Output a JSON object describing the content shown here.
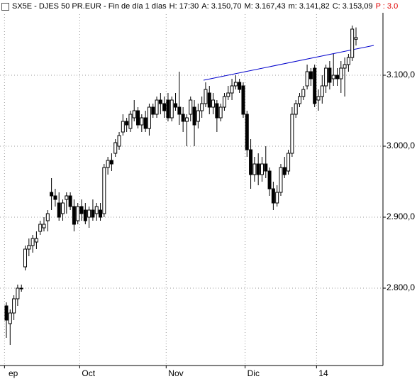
{
  "header": [
    "SX5E - DJES 50 PR.EUR - Fin de día 1 días",
    "H: 17:30",
    "A: 3.150,70",
    "M: 3.167,43",
    "m: 3.141,82",
    "C: 3.153,09",
    "P : 3.0"
  ],
  "chart_data": {
    "type": "candlestick",
    "up_color": "#ffffff",
    "down_color": "#000000",
    "grid": true,
    "ylim": [
      2691,
      3186
    ],
    "yticks": [
      {
        "value": 2800,
        "label": "2.800,0"
      },
      {
        "value": 2900,
        "label": "2.900,0"
      },
      {
        "value": 3000,
        "label": "3.000,0"
      },
      {
        "value": 3100,
        "label": "3.100,0"
      }
    ],
    "xlim": [
      0,
      93
    ],
    "xticks": [
      {
        "value": 0,
        "label": "ep"
      },
      {
        "value": 20,
        "label": "Oct"
      },
      {
        "value": 43,
        "label": "Nov"
      },
      {
        "value": 64,
        "label": "Dic"
      },
      {
        "value": 83,
        "label": "14"
      }
    ],
    "ohlc": [
      [
        2775,
        2780,
        2730,
        2755
      ],
      [
        2750,
        2770,
        2720,
        2765
      ],
      [
        2765,
        2790,
        2755,
        2785
      ],
      [
        2785,
        2805,
        2775,
        2800
      ],
      [
        2800,
        2805,
        2795,
        2800
      ],
      [
        2830,
        2860,
        2825,
        2855
      ],
      [
        2855,
        2870,
        2845,
        2860
      ],
      [
        2860,
        2875,
        2850,
        2870
      ],
      [
        2865,
        2880,
        2855,
        2870
      ],
      [
        2880,
        2895,
        2875,
        2890
      ],
      [
        2885,
        2900,
        2880,
        2890
      ],
      [
        2895,
        2910,
        2880,
        2905
      ],
      [
        2935,
        2955,
        2910,
        2930
      ],
      [
        2930,
        2940,
        2915,
        2925
      ],
      [
        2920,
        2935,
        2895,
        2900
      ],
      [
        2905,
        2925,
        2895,
        2920
      ],
      [
        2925,
        2935,
        2905,
        2930
      ],
      [
        2930,
        2935,
        2910,
        2915
      ],
      [
        2915,
        2925,
        2880,
        2890
      ],
      [
        2895,
        2920,
        2890,
        2915
      ],
      [
        2915,
        2925,
        2895,
        2905
      ],
      [
        2910,
        2920,
        2890,
        2895
      ],
      [
        2900,
        2915,
        2885,
        2910
      ],
      [
        2910,
        2925,
        2895,
        2900
      ],
      [
        2905,
        2920,
        2895,
        2915
      ],
      [
        2910,
        2920,
        2895,
        2900
      ],
      [
        2905,
        2975,
        2900,
        2970
      ],
      [
        2970,
        2985,
        2960,
        2980
      ],
      [
        2980,
        2990,
        2965,
        2975
      ],
      [
        2990,
        3010,
        2985,
        3005
      ],
      [
        3000,
        3020,
        2995,
        3015
      ],
      [
        3020,
        3045,
        3015,
        3035
      ],
      [
        3035,
        3040,
        3020,
        3030
      ],
      [
        3025,
        3050,
        3020,
        3045
      ],
      [
        3040,
        3065,
        3035,
        3050
      ],
      [
        3050,
        3055,
        3025,
        3030
      ],
      [
        3030,
        3045,
        3020,
        3040
      ],
      [
        3040,
        3050,
        3020,
        3025
      ],
      [
        3025,
        3060,
        3015,
        3055
      ],
      [
        3055,
        3060,
        3040,
        3045
      ],
      [
        3045,
        3070,
        3040,
        3065
      ],
      [
        3065,
        3075,
        3045,
        3060
      ],
      [
        3060,
        3070,
        3040,
        3050
      ],
      [
        3065,
        3075,
        3035,
        3040
      ],
      [
        3040,
        3070,
        3035,
        3065
      ],
      [
        3060,
        3075,
        3050,
        3055
      ],
      [
        3055,
        3105,
        3030,
        3045
      ],
      [
        3045,
        3055,
        3020,
        3035
      ],
      [
        3035,
        3045,
        3000,
        3040
      ],
      [
        3045,
        3070,
        3035,
        3065
      ],
      [
        3055,
        3065,
        3000,
        3030
      ],
      [
        3035,
        3060,
        3025,
        3050
      ],
      [
        3050,
        3070,
        3040,
        3060
      ],
      [
        3060,
        3090,
        3055,
        3080
      ],
      [
        3075,
        3085,
        3045,
        3055
      ],
      [
        3055,
        3075,
        3045,
        3065
      ],
      [
        3060,
        3065,
        3020,
        3040
      ],
      [
        3040,
        3060,
        3035,
        3055
      ],
      [
        3055,
        3075,
        3050,
        3070
      ],
      [
        3070,
        3085,
        3065,
        3075
      ],
      [
        3075,
        3095,
        3065,
        3085
      ],
      [
        3085,
        3100,
        3080,
        3090
      ],
      [
        3090,
        3095,
        3075,
        3080
      ],
      [
        3085,
        3090,
        3040,
        3045
      ],
      [
        3045,
        3050,
        2985,
        2995
      ],
      [
        2995,
        3010,
        2940,
        2960
      ],
      [
        2960,
        2985,
        2950,
        2975
      ],
      [
        2975,
        2990,
        2945,
        2960
      ],
      [
        2960,
        2985,
        2950,
        2975
      ],
      [
        2975,
        3000,
        2955,
        2965
      ],
      [
        2965,
        2970,
        2930,
        2940
      ],
      [
        2940,
        2950,
        2910,
        2920
      ],
      [
        2920,
        2945,
        2915,
        2935
      ],
      [
        2935,
        2975,
        2930,
        2970
      ],
      [
        2970,
        2985,
        2955,
        2960
      ],
      [
        2965,
        2995,
        2960,
        2990
      ],
      [
        2990,
        3055,
        2985,
        3045
      ],
      [
        3045,
        3065,
        3040,
        3060
      ],
      [
        3060,
        3075,
        3055,
        3070
      ],
      [
        3070,
        3085,
        3065,
        3080
      ],
      [
        3085,
        3115,
        3080,
        3105
      ],
      [
        3105,
        3110,
        3085,
        3095
      ],
      [
        3110,
        3115,
        3055,
        3060
      ],
      [
        3065,
        3080,
        3050,
        3070
      ],
      [
        3070,
        3100,
        3060,
        3085
      ],
      [
        3085,
        3115,
        3075,
        3110
      ],
      [
        3110,
        3120,
        3080,
        3090
      ],
      [
        3095,
        3130,
        3085,
        3100
      ],
      [
        3100,
        3110,
        3085,
        3095
      ],
      [
        3095,
        3120,
        3075,
        3110
      ],
      [
        3110,
        3125,
        3070,
        3115
      ],
      [
        3115,
        3130,
        3105,
        3125
      ],
      [
        3125,
        3170,
        3120,
        3165
      ],
      [
        3150.7,
        3167.43,
        3141.82,
        3153.09
      ]
    ]
  }
}
